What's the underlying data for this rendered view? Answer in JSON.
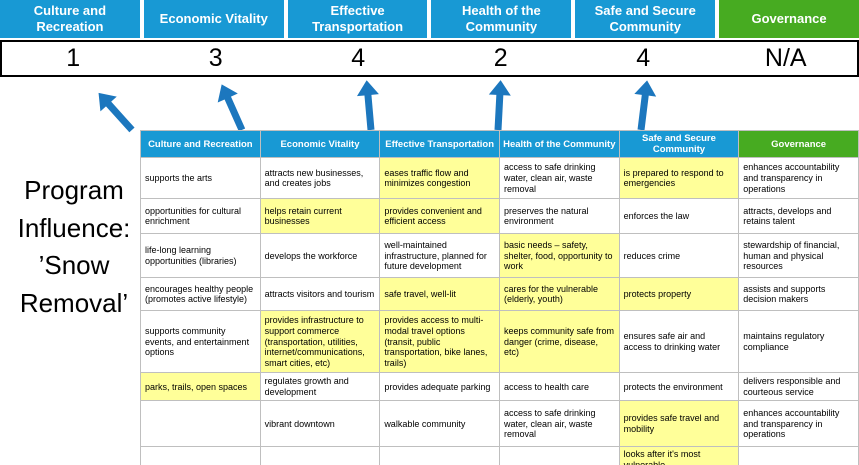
{
  "title": "Program Influence: ’Snow Removal’",
  "colors": {
    "header_blue": "#1899D4",
    "governance_green": "#47AB21",
    "highlight_yellow": "#FFFF99",
    "arrow_blue": "#1C77BE",
    "table_border": "#BFBFBF"
  },
  "scoreboard": {
    "columns": [
      {
        "label": "Culture and Recreation",
        "score": "1",
        "theme": "blue"
      },
      {
        "label": "Economic Vitality",
        "score": "3",
        "theme": "blue"
      },
      {
        "label": "Effective Transportation",
        "score": "4",
        "theme": "blue"
      },
      {
        "label": "Health of the Community",
        "score": "2",
        "theme": "blue"
      },
      {
        "label": "Safe and Secure Community",
        "score": "4",
        "theme": "blue"
      },
      {
        "label": "Governance",
        "score": "N/A",
        "theme": "green"
      }
    ]
  },
  "matrix": {
    "headers": [
      {
        "label": "Culture and Recreation",
        "theme": "blue"
      },
      {
        "label": "Economic Vitality",
        "theme": "blue"
      },
      {
        "label": "Effective Transportation",
        "theme": "blue"
      },
      {
        "label": "Health of the Community",
        "theme": "blue"
      },
      {
        "label": "Safe and Secure Community",
        "theme": "blue"
      },
      {
        "label": "Governance",
        "theme": "green"
      }
    ],
    "rows": [
      [
        {
          "text": "supports the arts",
          "highlight": false
        },
        {
          "text": "attracts new businesses, and creates jobs",
          "highlight": false
        },
        {
          "text": "eases traffic flow and minimizes congestion",
          "highlight": true
        },
        {
          "text": "access to safe drinking water, clean air, waste removal",
          "highlight": false
        },
        {
          "text": "is prepared to respond to emergencies",
          "highlight": true
        },
        {
          "text": "enhances accountability and transparency in operations",
          "highlight": false
        }
      ],
      [
        {
          "text": "opportunities for cultural enrichment",
          "highlight": false
        },
        {
          "text": "helps retain current businesses",
          "highlight": true
        },
        {
          "text": "provides convenient and efficient access",
          "highlight": true
        },
        {
          "text": "preserves the natural environment",
          "highlight": false
        },
        {
          "text": "enforces the law",
          "highlight": false
        },
        {
          "text": "attracts, develops and retains talent",
          "highlight": false
        }
      ],
      [
        {
          "text": "life-long learning opportunities (libraries)",
          "highlight": false
        },
        {
          "text": "develops the workforce",
          "highlight": false
        },
        {
          "text": "well-maintained infrastructure, planned for future development",
          "highlight": false
        },
        {
          "text": "basic needs – safety, shelter, food, opportunity to work",
          "highlight": true
        },
        {
          "text": "reduces crime",
          "highlight": false
        },
        {
          "text": "stewardship of financial, human and physical resources",
          "highlight": false
        }
      ],
      [
        {
          "text": "encourages healthy people (promotes active lifestyle)",
          "highlight": false
        },
        {
          "text": "attracts visitors and tourism",
          "highlight": false
        },
        {
          "text": "safe travel, well-lit",
          "highlight": true
        },
        {
          "text": "cares for the vulnerable (elderly, youth)",
          "highlight": true
        },
        {
          "text": "protects property",
          "highlight": true
        },
        {
          "text": "assists and supports decision makers",
          "highlight": false
        }
      ],
      [
        {
          "text": "supports community events, and entertainment options",
          "highlight": false
        },
        {
          "text": "provides infrastructure to support commerce (transportation, utilities, internet/communications, smart cities, etc)",
          "highlight": true
        },
        {
          "text": "provides access to multi-modal travel options (transit, public transportation, bike lanes, trails)",
          "highlight": true
        },
        {
          "text": "keeps community safe from danger (crime, disease, etc)",
          "highlight": true
        },
        {
          "text": "ensures safe air and access to drinking water",
          "highlight": false
        },
        {
          "text": "maintains regulatory compliance",
          "highlight": false
        }
      ],
      [
        {
          "text": "parks, trails, open spaces",
          "highlight": true
        },
        {
          "text": "regulates growth and development",
          "highlight": false
        },
        {
          "text": "provides adequate parking",
          "highlight": false
        },
        {
          "text": "access to health care",
          "highlight": false
        },
        {
          "text": "protects the environment",
          "highlight": false
        },
        {
          "text": "delivers responsible and courteous service",
          "highlight": false
        }
      ],
      [
        {
          "text": "",
          "highlight": false
        },
        {
          "text": "vibrant downtown",
          "highlight": false
        },
        {
          "text": "walkable community",
          "highlight": false
        },
        {
          "text": "access to safe drinking water, clean air, waste removal",
          "highlight": false
        },
        {
          "text": "provides safe travel and mobility",
          "highlight": true
        },
        {
          "text": "enhances accountability and transparency in operations",
          "highlight": false
        }
      ],
      [
        {
          "text": "",
          "highlight": false
        },
        {
          "text": "",
          "highlight": false
        },
        {
          "text": "",
          "highlight": false
        },
        {
          "text": "",
          "highlight": false
        },
        {
          "text": "looks after it's most vulnerable",
          "highlight": true
        },
        {
          "text": "",
          "highlight": false
        }
      ]
    ]
  }
}
